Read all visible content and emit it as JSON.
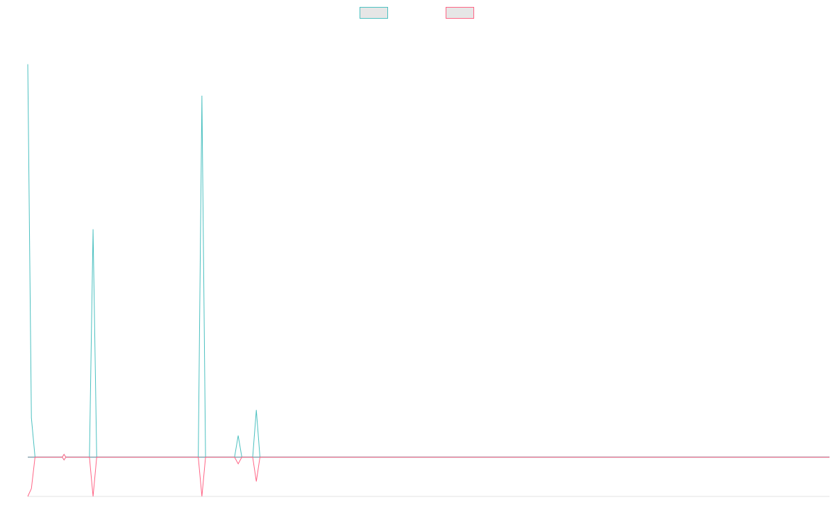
{
  "chart_data": {
    "type": "line",
    "title": "",
    "xlabel": "",
    "ylabel": "",
    "grid": false,
    "legend": "top-center",
    "x_count": 222,
    "ylim": [
      -1,
      11
    ],
    "series": [
      {
        "name": "",
        "color": "#4bc0c0",
        "fill": "#e6e6e6",
        "points": [
          [
            0,
            10.0
          ],
          [
            1,
            1.0
          ],
          [
            2,
            0.0
          ],
          [
            10,
            0.0
          ],
          [
            17,
            0.0
          ],
          [
            18,
            5.8
          ],
          [
            19,
            0.0
          ],
          [
            47,
            0.0
          ],
          [
            48,
            9.2
          ],
          [
            49,
            0.0
          ],
          [
            57,
            0.0
          ],
          [
            58,
            0.55
          ],
          [
            59,
            0.0
          ],
          [
            62,
            0.0
          ],
          [
            63,
            1.2
          ],
          [
            64,
            0.0
          ],
          [
            221,
            0.0
          ]
        ],
        "markers": [
          10
        ]
      },
      {
        "name": "",
        "color": "#ff6384",
        "fill": "#e6e6e6",
        "points": [
          [
            0,
            -1.0
          ],
          [
            1,
            -0.8
          ],
          [
            2,
            0.0
          ],
          [
            10,
            0.0
          ],
          [
            17,
            0.0
          ],
          [
            18,
            -1.0
          ],
          [
            19,
            0.0
          ],
          [
            47,
            0.0
          ],
          [
            48,
            -1.0
          ],
          [
            49,
            0.0
          ],
          [
            57,
            0.0
          ],
          [
            58,
            -0.17
          ],
          [
            59,
            0.0
          ],
          [
            62,
            0.0
          ],
          [
            63,
            -0.62
          ],
          [
            64,
            0.0
          ],
          [
            221,
            0.0
          ]
        ],
        "markers": [
          10
        ]
      }
    ],
    "zero_line_color": "#8aa4b0"
  }
}
